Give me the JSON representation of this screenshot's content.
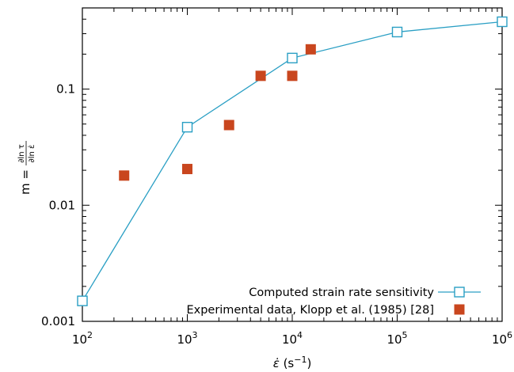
{
  "chart_data": {
    "type": "scatter",
    "x_scale": "log",
    "y_scale": "log",
    "xlim": [
      100,
      1000000
    ],
    "ylim": [
      0.001,
      0.5
    ],
    "x_ticks": [
      {
        "value": 100,
        "base": "10",
        "exp": "2"
      },
      {
        "value": 1000,
        "base": "10",
        "exp": "3"
      },
      {
        "value": 10000,
        "base": "10",
        "exp": "4"
      },
      {
        "value": 100000,
        "base": "10",
        "exp": "5"
      },
      {
        "value": 1000000,
        "base": "10",
        "exp": "6"
      }
    ],
    "y_ticks": [
      {
        "value": 0.001,
        "label": "0.001"
      },
      {
        "value": 0.01,
        "label": "0.01"
      },
      {
        "value": 0.1,
        "label": "0.1"
      }
    ],
    "xlabel": {
      "symbol": "ε̇",
      "unit_open": " (s",
      "unit_exp": "−1",
      "unit_close": ")"
    },
    "ylabel": {
      "lhs": "m =",
      "num": "∂ln τ",
      "den": "∂ln ε̇"
    },
    "legend_position": "bottom-right",
    "grid": false,
    "series": [
      {
        "name": "Computed strain rate sensitivity",
        "style": "line+open-square",
        "color": "#2a9fc4",
        "x": [
          100,
          1000,
          10000,
          100000,
          1000000
        ],
        "y": [
          0.0015,
          0.047,
          0.185,
          0.31,
          0.38
        ]
      },
      {
        "name": "Experimental data, Klopp et al. (1985) [28]",
        "style": "filled-square",
        "color": "#c9461e",
        "x": [
          250,
          1000,
          2500,
          5000,
          10000,
          15000
        ],
        "y": [
          0.018,
          0.0205,
          0.049,
          0.13,
          0.13,
          0.22
        ]
      }
    ]
  }
}
